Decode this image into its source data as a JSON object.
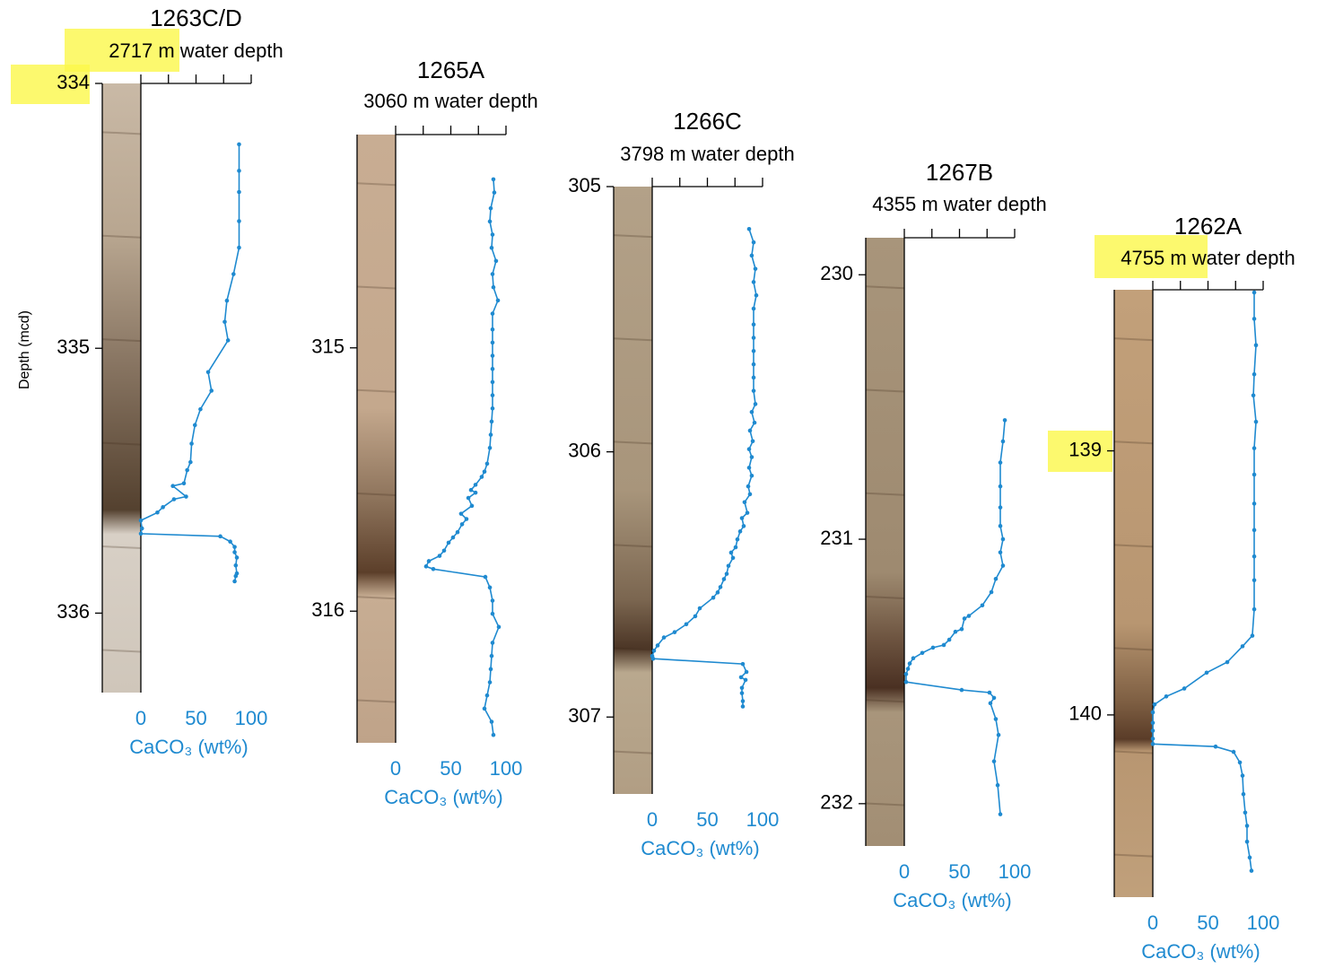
{
  "chart_data": [
    {
      "type": "line",
      "title": "1263C/D",
      "subtitle": "2717 m water depth",
      "xlabel": "CaCO₃ (wt%)",
      "ylabel": "Depth (mcd)",
      "color": "#1f8ad0",
      "xlim": [
        0,
        100
      ],
      "xticks": [
        0,
        50,
        100
      ],
      "xminorticks": [
        25,
        75
      ],
      "ylim": [
        334,
        336.3
      ],
      "yticks": [
        334,
        335,
        336
      ],
      "x": [
        89,
        89,
        89,
        89,
        89,
        84,
        78,
        76,
        79,
        61,
        64,
        54,
        49,
        46,
        45,
        42,
        39,
        29,
        41,
        30,
        20,
        15,
        0,
        1,
        0,
        72,
        81,
        85,
        85,
        87,
        86,
        87,
        86,
        85
      ],
      "y": [
        334.23,
        334.33,
        334.41,
        334.52,
        334.62,
        334.72,
        334.82,
        334.9,
        334.97,
        335.09,
        335.16,
        335.23,
        335.29,
        335.36,
        335.43,
        335.46,
        335.51,
        335.52,
        335.56,
        335.57,
        335.6,
        335.62,
        335.65,
        335.68,
        335.7,
        335.71,
        335.73,
        335.75,
        335.77,
        335.79,
        335.82,
        335.85,
        335.86,
        335.88
      ]
    },
    {
      "type": "line",
      "title": "1265A",
      "subtitle": "3060 m water depth",
      "xlabel": "CaCO₃ (wt%)",
      "color": "#1f8ad0",
      "xlim": [
        0,
        100
      ],
      "xticks": [
        0,
        50,
        100
      ],
      "xminorticks": [
        25,
        75
      ],
      "ylim": [
        314.19,
        316.5
      ],
      "yticks": [
        315,
        316
      ],
      "x": [
        88.6,
        89.4,
        86.2,
        85.4,
        87.8,
        87,
        91,
        87.8,
        88.6,
        92.7,
        87.8,
        87.8,
        87.8,
        87.8,
        87.8,
        87.8,
        87.8,
        87.8,
        87,
        86.2,
        85.4,
        82.9,
        80.5,
        78,
        72.4,
        68.3,
        72.4,
        65.9,
        69.1,
        59.3,
        64.2,
        60.2,
        56.1,
        52,
        48,
        43.9,
        39.8,
        30.1,
        27.6,
        34.1,
        81.3,
        85.4,
        87.8,
        87.8,
        93.5,
        87.8,
        87,
        86.2,
        85.4,
        82.9,
        80.5,
        87,
        88.6
      ],
      "y": [
        314.36,
        314.41,
        314.47,
        314.52,
        314.57,
        314.62,
        314.67,
        314.72,
        314.77,
        314.82,
        314.87,
        314.93,
        314.98,
        315.03,
        315.08,
        315.13,
        315.18,
        315.23,
        315.28,
        315.33,
        315.38,
        315.44,
        315.47,
        315.49,
        315.52,
        315.54,
        315.55,
        315.57,
        315.6,
        315.63,
        315.65,
        315.67,
        315.7,
        315.72,
        315.74,
        315.77,
        315.79,
        315.81,
        315.83,
        315.84,
        315.87,
        315.91,
        315.96,
        316.01,
        316.06,
        316.12,
        316.17,
        316.22,
        316.27,
        316.32,
        316.37,
        316.42,
        316.47
      ]
    },
    {
      "type": "line",
      "title": "1266C",
      "subtitle": "3798 m water depth",
      "xlabel": "CaCO₃ (wt%)",
      "color": "#1f8ad0",
      "xlim": [
        0,
        100
      ],
      "xticks": [
        0,
        50,
        100
      ],
      "xminorticks": [
        25,
        75
      ],
      "ylim": [
        305,
        307.29
      ],
      "yticks": [
        305,
        306,
        307
      ],
      "x": [
        87.8,
        91.9,
        90.2,
        93.5,
        91.9,
        94.3,
        91.9,
        91.9,
        91.9,
        91.9,
        91.9,
        91.9,
        91.9,
        93.5,
        90.2,
        92.7,
        88.6,
        91.1,
        87.8,
        90.2,
        87.8,
        90.2,
        87,
        88.6,
        83.7,
        86.2,
        81.3,
        82.9,
        79.7,
        77.2,
        75.6,
        71.5,
        73.2,
        69.1,
        67.5,
        65,
        61.8,
        59.3,
        55.3,
        43.1,
        39,
        30.9,
        20.3,
        10.6,
        4.9,
        1.6,
        0,
        0.8,
        82.1,
        85.4,
        80.5,
        84.6,
        81.3,
        81.3,
        82.1,
        82.1
      ],
      "y": [
        305.16,
        305.21,
        305.26,
        305.31,
        305.36,
        305.41,
        305.46,
        305.52,
        305.57,
        305.62,
        305.67,
        305.72,
        305.77,
        305.82,
        305.85,
        305.89,
        305.92,
        305.96,
        305.99,
        306.02,
        306.06,
        306.09,
        306.13,
        306.16,
        306.19,
        306.23,
        306.25,
        306.28,
        306.3,
        306.33,
        306.36,
        306.38,
        306.4,
        306.43,
        306.46,
        306.48,
        306.51,
        306.53,
        306.55,
        306.59,
        306.62,
        306.65,
        306.68,
        306.7,
        306.73,
        306.75,
        306.77,
        306.78,
        306.8,
        306.83,
        306.85,
        306.86,
        306.89,
        306.91,
        306.94,
        306.96
      ]
    },
    {
      "type": "line",
      "title": "1267B",
      "subtitle": "4355 m water depth",
      "xlabel": "CaCO₃ (wt%)",
      "color": "#1f8ad0",
      "xlim": [
        0,
        100
      ],
      "xticks": [
        0,
        50,
        100
      ],
      "xminorticks": [
        25,
        75
      ],
      "ylim": [
        229.86,
        232.16
      ],
      "yticks": [
        230,
        231,
        232
      ],
      "x": [
        91.1,
        89.4,
        87,
        87,
        87,
        87,
        89.4,
        87,
        89.4,
        82.9,
        78.9,
        70.7,
        58.5,
        54.5,
        52,
        46.3,
        40.7,
        35.8,
        26,
        16.3,
        8.1,
        4.9,
        3.3,
        1.6,
        1.6,
        52,
        77.2,
        81.3,
        78,
        82.9,
        85.4,
        81.3,
        84.6,
        87
      ],
      "y": [
        230.55,
        230.63,
        230.71,
        230.8,
        230.88,
        230.95,
        231,
        231.05,
        231.1,
        231.15,
        231.2,
        231.25,
        231.29,
        231.3,
        231.34,
        231.35,
        231.38,
        231.4,
        231.41,
        231.43,
        231.45,
        231.47,
        231.49,
        231.51,
        231.54,
        231.57,
        231.58,
        231.6,
        231.62,
        231.68,
        231.74,
        231.84,
        231.93,
        232.04
      ]
    },
    {
      "type": "line",
      "title": "1262A",
      "subtitle": "4755 m water depth",
      "xlabel": "CaCO₃ (wt%)",
      "color": "#1f8ad0",
      "xlim": [
        0,
        100
      ],
      "xticks": [
        0,
        50,
        100
      ],
      "xminorticks": [
        25,
        75
      ],
      "ylim": [
        138.39,
        140.69
      ],
      "yticks": [
        139,
        140
      ],
      "x": [
        91.9,
        91.9,
        93.5,
        91.9,
        91.1,
        93.5,
        91.9,
        91.9,
        91.9,
        91.9,
        91.9,
        91.9,
        91.9,
        90.2,
        81.3,
        67.5,
        48.8,
        28.5,
        12.2,
        1.6,
        0,
        0,
        0,
        0,
        0,
        56.9,
        73.2,
        78.9,
        81.3,
        82.1,
        83.7,
        85.4,
        85.4,
        87.8,
        89.4
      ],
      "y": [
        138.4,
        138.5,
        138.6,
        138.71,
        138.79,
        138.89,
        138.99,
        139.09,
        139.2,
        139.3,
        139.4,
        139.49,
        139.6,
        139.7,
        139.74,
        139.8,
        139.84,
        139.9,
        139.93,
        139.96,
        139.99,
        140.03,
        140.06,
        140.09,
        140.11,
        140.12,
        140.14,
        140.18,
        140.23,
        140.3,
        140.37,
        140.42,
        140.48,
        140.54,
        140.59
      ]
    }
  ]
}
